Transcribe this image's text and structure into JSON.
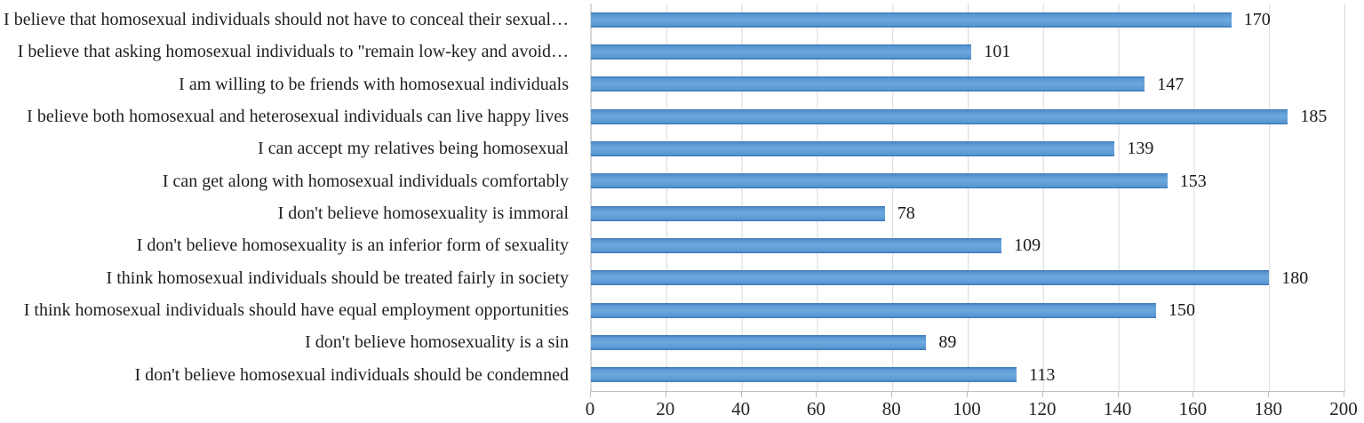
{
  "chart_data": {
    "type": "bar",
    "orientation": "horizontal",
    "title": "",
    "xlabel": "",
    "ylabel": "",
    "grid": true,
    "legend": false,
    "value_labels": true,
    "xlim": [
      0,
      200
    ],
    "x_ticks": [
      0,
      20,
      40,
      60,
      80,
      100,
      120,
      140,
      160,
      180,
      200
    ],
    "categories": [
      "I believe that homosexual individuals should not have to conceal their sexual…",
      "I believe that asking homosexual individuals to \"remain low-key and avoid…",
      "I am willing to be friends with homosexual individuals",
      "I believe both homosexual and heterosexual individuals can live happy lives",
      "I can accept my relatives being homosexual",
      "I can get along with homosexual individuals comfortably",
      "I don't believe homosexuality is immoral",
      "I don't believe homosexuality is an inferior form of sexuality",
      "I think homosexual individuals should be treated fairly in society",
      "I think homosexual individuals should have equal employment opportunities",
      "I don't believe homosexuality is a sin",
      "I don't believe homosexual individuals should be condemned"
    ],
    "values": [
      170,
      101,
      147,
      185,
      139,
      153,
      78,
      109,
      180,
      150,
      89,
      113
    ],
    "colors": {
      "bar": "#5B9BD5",
      "bar_light": "#6EA7DD",
      "bar_border": "#4178B8",
      "gridline": "#D9D9D9",
      "axis": "#BFBFBF",
      "text": "#1F1F1F"
    }
  }
}
